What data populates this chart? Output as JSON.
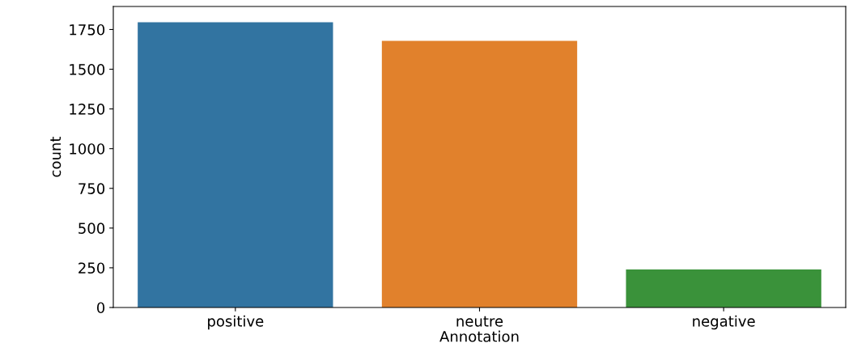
{
  "chart_data": {
    "type": "bar",
    "xlabel": "Annotation",
    "ylabel": "count",
    "categories": [
      "positive",
      "neutre",
      "negative"
    ],
    "values": [
      1796,
      1678,
      240
    ],
    "colors": [
      "#3274a1",
      "#e1812c",
      "#3a923a"
    ],
    "ylim": [
      0,
      1895
    ],
    "yticks": [
      0,
      250,
      500,
      750,
      1000,
      1250,
      1500,
      1750
    ],
    "grid": false
  }
}
